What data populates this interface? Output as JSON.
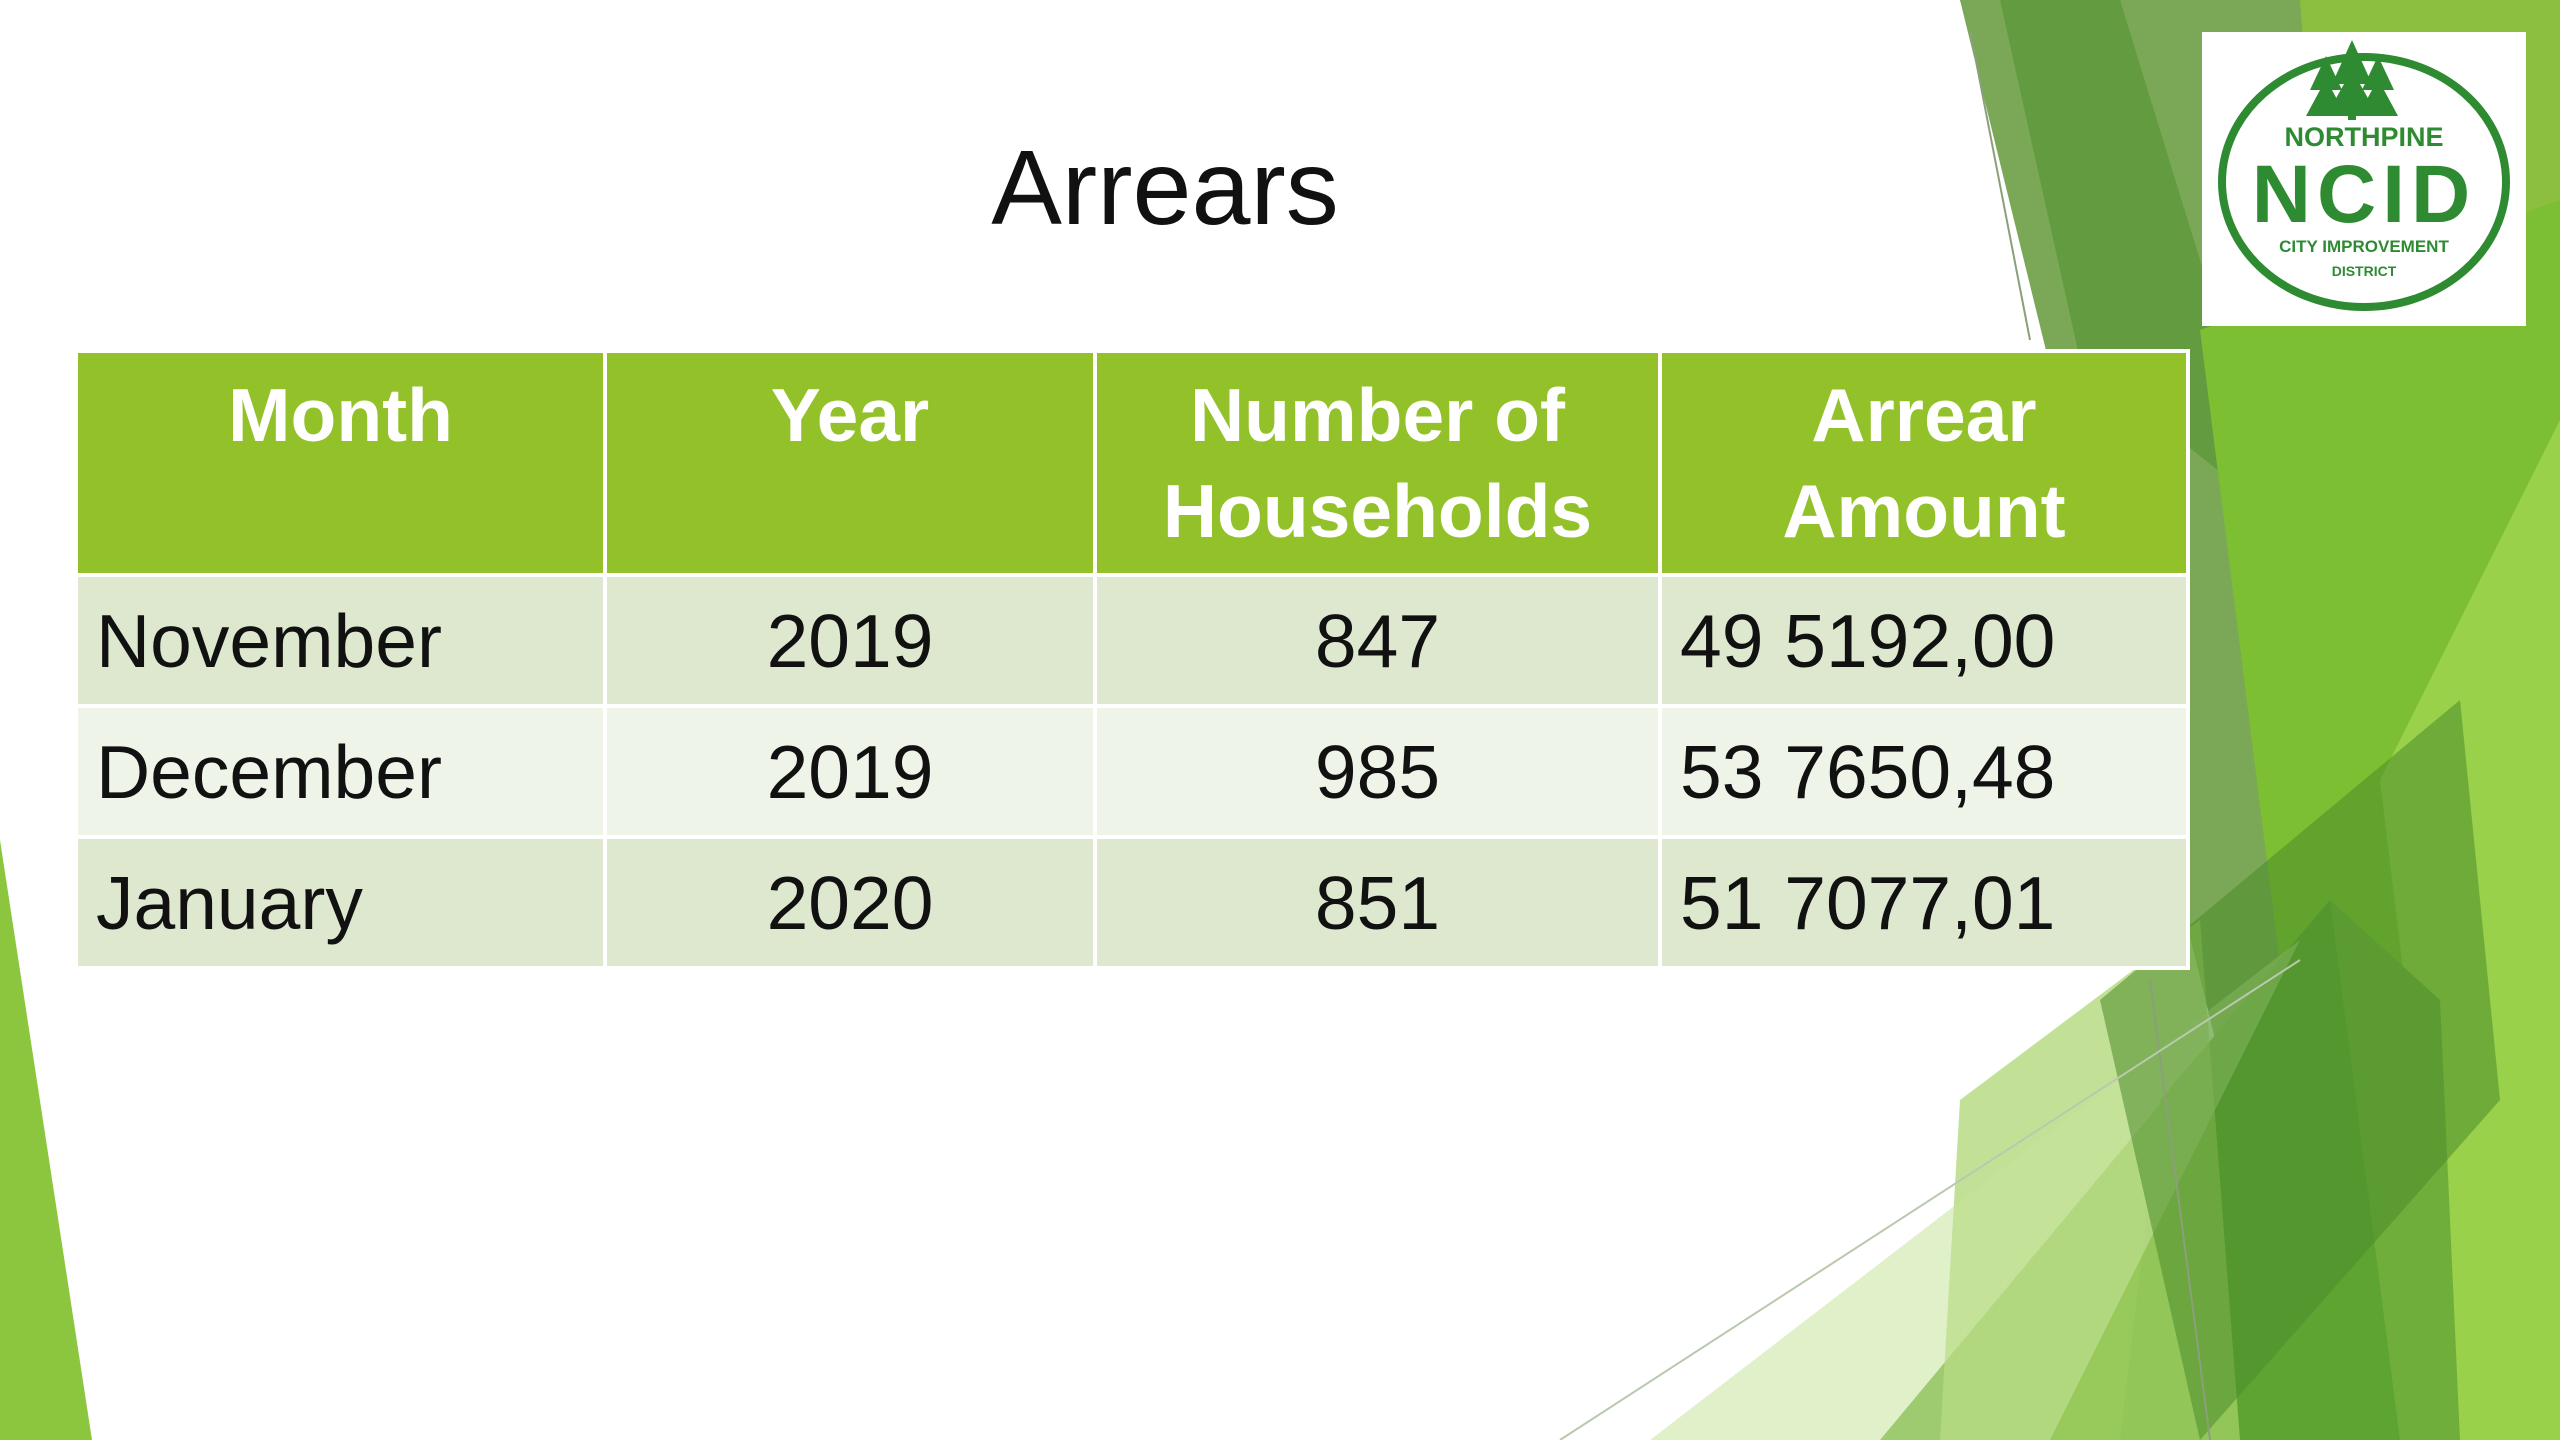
{
  "title": "Arrears",
  "logo": {
    "top_text": "NORTHPINE",
    "main_text": "NCID",
    "line1": "CITY IMPROVEMENT",
    "line2": "DISTRICT",
    "color": "#2e8b32"
  },
  "table": {
    "headers": {
      "month": "Month",
      "year": "Year",
      "households_line1": "Number of",
      "households_line2": "Households",
      "amount_line1": "Arrear",
      "amount_line2": "Amount"
    },
    "rows": [
      {
        "month": "November",
        "year": "2019",
        "households": "847",
        "amount": "49 5192,00"
      },
      {
        "month": "December",
        "year": "2019",
        "households": "985",
        "amount": "53 7650,48"
      },
      {
        "month": "January",
        "year": "2020",
        "households": "851",
        "amount": "51 7077,01"
      }
    ]
  },
  "colors": {
    "header_green": "#92c12a",
    "row_odd": "#dde8cf",
    "row_even": "#eef4e8",
    "accent_green": "#8cc63f",
    "dark_green": "#5e9b3a"
  }
}
